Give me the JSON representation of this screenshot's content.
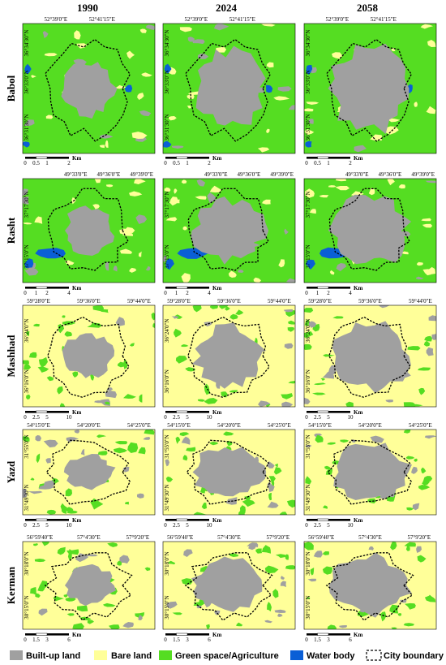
{
  "colors": {
    "built_up": "#a0a0a0",
    "bare": "#ffff99",
    "green": "#55dd22",
    "water": "#0a5fd6",
    "boundary": "#000000"
  },
  "years": [
    "1990",
    "2024",
    "2058"
  ],
  "cities": [
    {
      "name": "Babol",
      "base": "green",
      "lon": [
        "52°39'0\"E",
        "52°41'15\"E"
      ],
      "lat": [
        "36°34'30\"N",
        "36°33'0\"N",
        "36°31'30\"N"
      ],
      "scale": [
        "0",
        "0.5",
        "1",
        "2"
      ],
      "unit": "Km"
    },
    {
      "name": "Rasht",
      "base": "green",
      "lon": [
        "49°33'0\"E",
        "49°36'0\"E",
        "49°39'0\"E"
      ],
      "lat": [
        "37°17'30\"N",
        "37°15'0\"N"
      ],
      "scale": [
        "0",
        "1",
        "2",
        "4"
      ],
      "unit": "Km"
    },
    {
      "name": "Mashhad",
      "base": "bare",
      "lon": [
        "59°28'0\"E",
        "59°36'0\"E",
        "59°44'0\"E"
      ],
      "lat": [
        "36°24'0\"N",
        "36°16'0\"N"
      ],
      "scale": [
        "0",
        "2.5",
        "5",
        "10"
      ],
      "unit": "Km"
    },
    {
      "name": "Yazd",
      "base": "bare",
      "lon": [
        "54°15'0\"E",
        "54°20'0\"E",
        "54°25'0\"E"
      ],
      "lat": [
        "31°55'0\"N",
        "31°49'30\"N"
      ],
      "scale": [
        "0",
        "2.5",
        "5",
        "10"
      ],
      "unit": "Km"
    },
    {
      "name": "Kerman",
      "base": "bare",
      "lon": [
        "56°59'40\"E",
        "57°4'30\"E",
        "57°9'20\"E"
      ],
      "lat": [
        "30°18'0\"N",
        "30°15'0\"N"
      ],
      "scale": [
        "0",
        "1.5",
        "3",
        "6"
      ],
      "unit": "Km"
    }
  ],
  "legend": [
    {
      "label": "Built-up land",
      "class": "built_up"
    },
    {
      "label": "Bare land",
      "class": "bare"
    },
    {
      "label": "Green space/Agriculture",
      "class": "green"
    },
    {
      "label": "Water body",
      "class": "water"
    },
    {
      "label": "City boundary",
      "class": "boundary"
    }
  ]
}
